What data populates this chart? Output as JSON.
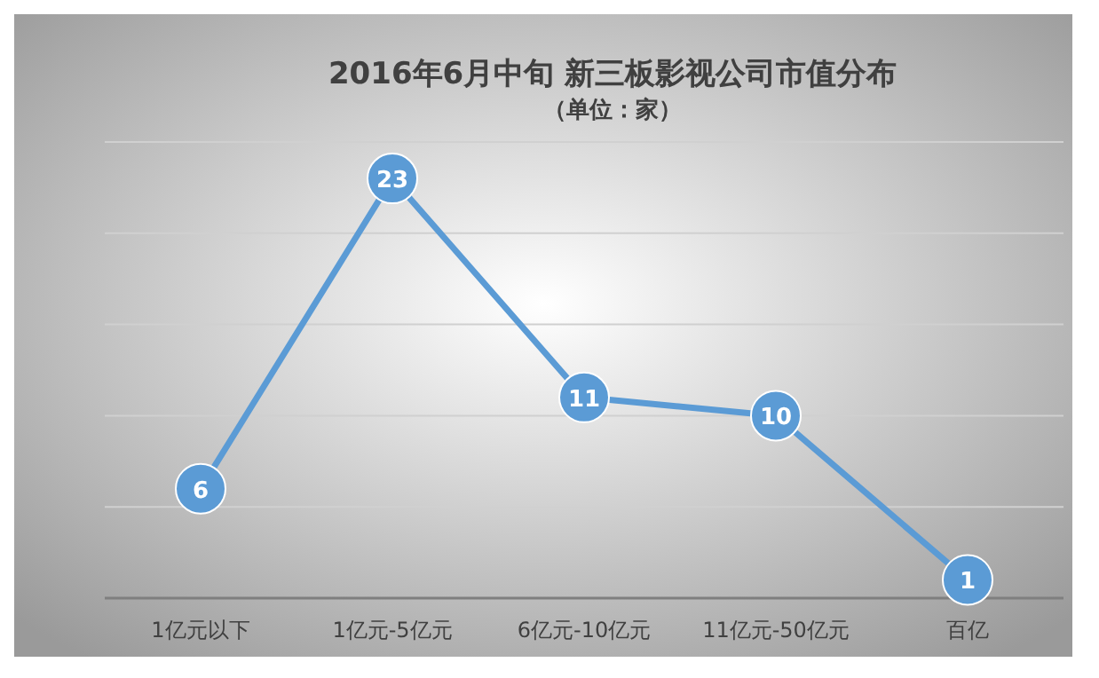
{
  "chart_data": {
    "type": "line",
    "title": "2016年6月中旬  新三板影视公司市值分布",
    "subtitle": "（单位：家）",
    "categories": [
      "1亿元以下",
      "1亿元-5亿元",
      "6亿元-10亿元",
      "11亿元-50亿元",
      "百亿"
    ],
    "values": [
      6,
      23,
      11,
      10,
      1
    ],
    "color": "#5b9bd5",
    "ylim": [
      0,
      25
    ],
    "yticks": [
      {
        "value": 0,
        "label": null
      },
      {
        "value": 5,
        "label": null
      },
      {
        "value": 10,
        "label": null
      },
      {
        "value": 15,
        "label": null
      },
      {
        "value": 20,
        "label": null
      },
      {
        "value": 25,
        "label": null
      }
    ],
    "tick_labels": "x",
    "grid": "y",
    "marker": "circle",
    "data_labels": true
  }
}
